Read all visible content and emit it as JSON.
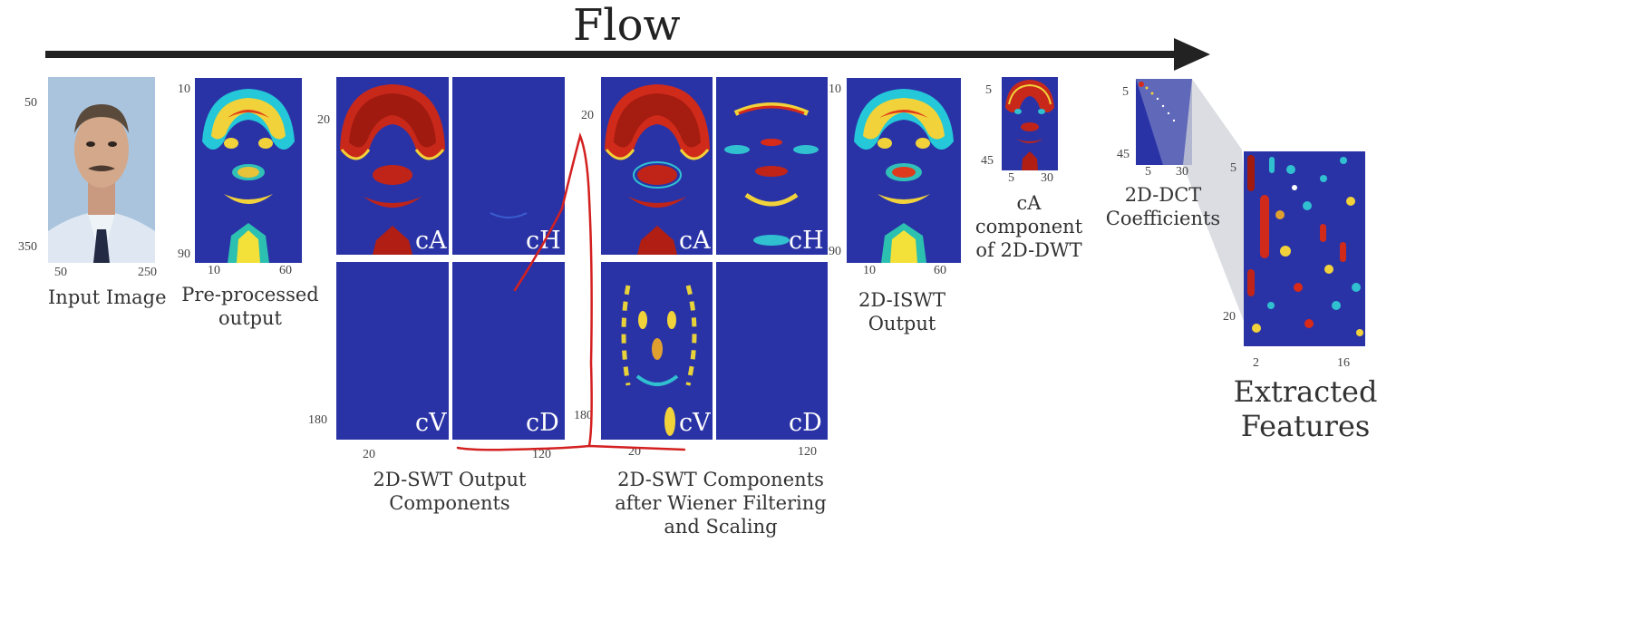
{
  "flow": {
    "title": "Flow"
  },
  "input": {
    "caption": "Input Image",
    "y_ticks": [
      "50",
      "350"
    ],
    "x_ticks": [
      "50",
      "250"
    ]
  },
  "preprocessed": {
    "caption_lines": [
      "Pre-processed",
      "output"
    ],
    "y_ticks": [
      "10",
      "90"
    ],
    "x_ticks": [
      "10",
      "60"
    ]
  },
  "swt": {
    "caption_lines": [
      "2D-SWT Output",
      "Components"
    ],
    "y_ticks": [
      "20",
      "180"
    ],
    "x_ticks": [
      "20",
      "120"
    ],
    "subbands": [
      "cA",
      "cH",
      "cV",
      "cD"
    ]
  },
  "filtered": {
    "caption_lines": [
      "2D-SWT Components",
      "after Wiener Filtering",
      "and Scaling"
    ],
    "y_ticks": [
      "20",
      "180"
    ],
    "x_ticks": [
      "20",
      "120"
    ],
    "subbands": [
      "cA",
      "cH",
      "cV",
      "cD"
    ]
  },
  "iswt": {
    "caption_lines": [
      "2D-ISWT",
      "Output"
    ],
    "y_ticks": [
      "10",
      "90"
    ],
    "x_ticks": [
      "10",
      "60"
    ]
  },
  "dwt": {
    "caption_lines": [
      "cA",
      "component",
      "of 2D-DWT"
    ],
    "y_ticks": [
      "5",
      "45"
    ],
    "x_ticks": [
      "5",
      "30"
    ]
  },
  "dct": {
    "caption_lines": [
      "2D-DCT",
      "Coefficients"
    ],
    "y_ticks": [
      "5",
      "45"
    ],
    "x_ticks": [
      "5",
      "30"
    ]
  },
  "features": {
    "caption_lines": [
      "Extracted",
      "Features"
    ],
    "y_ticks": [
      "5",
      "20"
    ],
    "x_ticks": [
      "2",
      "16"
    ]
  },
  "colors": {
    "heatmap_background": "#2a33a6",
    "flow_arrow": "#222222",
    "annotation": "#d42020"
  }
}
